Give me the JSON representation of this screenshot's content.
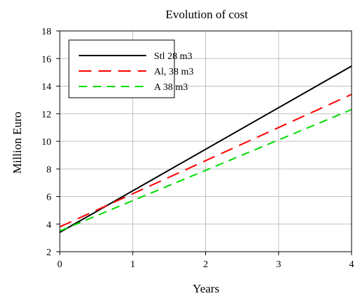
{
  "chart_data": {
    "type": "line",
    "title": "Evolution of cost",
    "xlabel": "Years",
    "ylabel": "Million Euro",
    "xlim": [
      0,
      4
    ],
    "ylim": [
      2,
      18
    ],
    "xticks": [
      0,
      1,
      2,
      3,
      4
    ],
    "yticks": [
      2,
      4,
      6,
      8,
      10,
      12,
      14,
      16,
      18
    ],
    "grid": true,
    "legend_position": "top-left",
    "series": [
      {
        "name": "Stl 28 m3",
        "color": "#000000",
        "dash": "solid",
        "x": [
          0,
          4
        ],
        "y": [
          3.4,
          15.45
        ]
      },
      {
        "name": "Al, 38 m3",
        "color": "#ff0000",
        "dash": "long-dash",
        "x": [
          0,
          4
        ],
        "y": [
          3.8,
          13.4
        ]
      },
      {
        "name": "A 38 m3",
        "color": "#00dd00",
        "dash": "dash",
        "x": [
          0,
          4
        ],
        "y": [
          3.5,
          12.3
        ]
      }
    ]
  }
}
